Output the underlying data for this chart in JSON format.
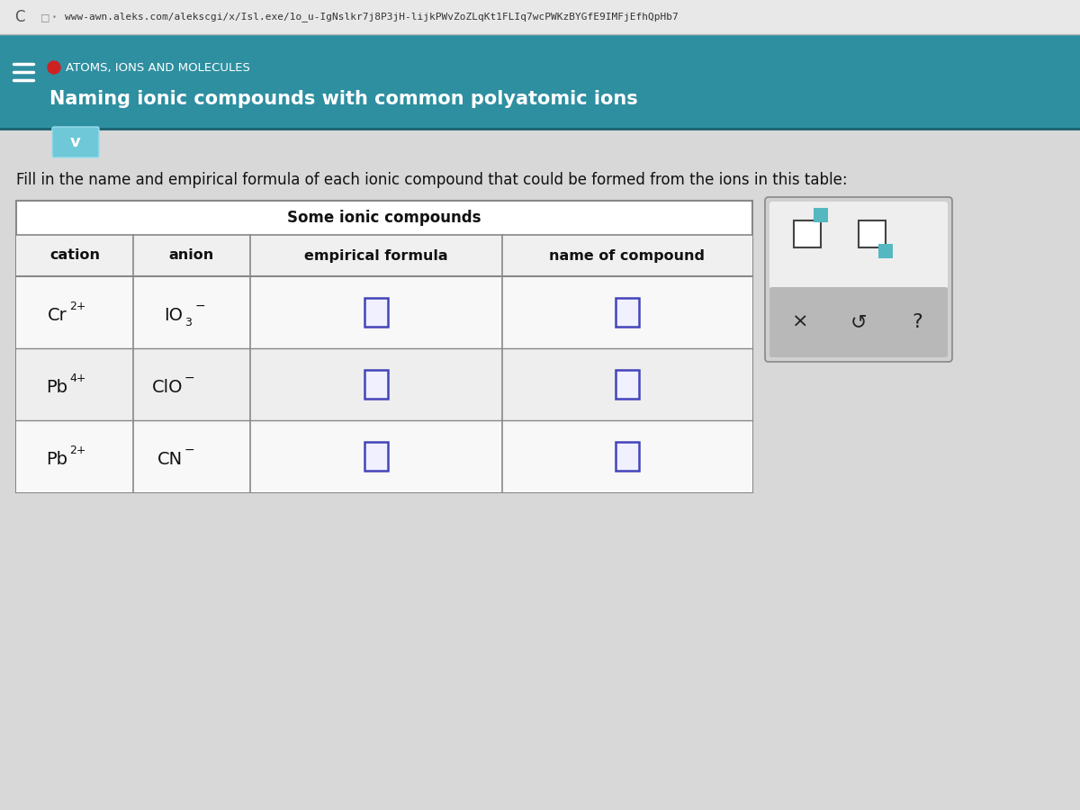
{
  "browser_url": "www-awn.aleks.com/alekscgi/x/Isl.exe/1o_u-IgNslkr7j8P3jH-lijkPWvZoZLqKt1FLIq7wcPWKzBYGfE9IMFjEfhQpHb7",
  "header_bg": "#2e8fa0",
  "header_red_dot_color": "#cc2222",
  "header_topic": "ATOMS, IONS AND MOLECULES",
  "header_subtitle": "Naming ionic compounds with common polyatomic ions",
  "instruction_text": "Fill in the name and empirical formula of each ionic compound that could be formed from the ions in this table:",
  "table_title": "Some ionic compounds",
  "col_headers": [
    "cation",
    "anion",
    "empirical formula",
    "name of compound"
  ],
  "rows": [
    {
      "cation": "Cr",
      "cation_sup": "2+",
      "anion": "IO",
      "anion_sub": "3",
      "anion_sup": "−"
    },
    {
      "cation": "Pb",
      "cation_sup": "4+",
      "anion": "ClO",
      "anion_sub": "",
      "anion_sup": "−"
    },
    {
      "cation": "Pb",
      "cation_sup": "2+",
      "anion": "CN",
      "anion_sub": "",
      "anion_sup": "−"
    }
  ],
  "content_bg": "#d8d8d8",
  "table_bg": "#ffffff",
  "table_alt_bg": "#e8e8e8",
  "cell_border_color": "#888888",
  "input_box_color": "#4444bb",
  "input_box_fill": "#f0f0ff",
  "sidebar_bg": "#d0d0d0",
  "sidebar_border": "#999999",
  "sidebar_top_bg": "#eeeeee",
  "sidebar_bot_bg": "#b8b8b8",
  "teal_color": "#55b8c0",
  "page_bg": "#cccccc",
  "browser_bar_bg": "#e8e8e8",
  "browser_bar_border": "#bbbbbb",
  "header_separator_color": "#aaaaaa",
  "arrow_btn_bg": "#6ec8d8",
  "arrow_btn_border": "#99ddee"
}
